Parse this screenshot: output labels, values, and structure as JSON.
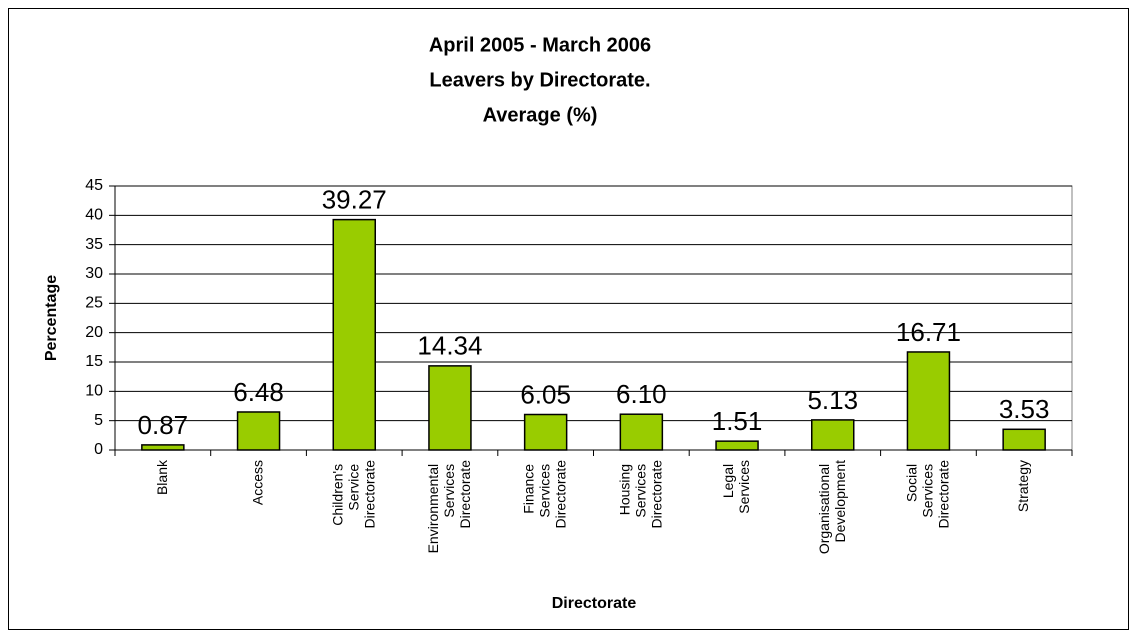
{
  "chart_data": {
    "type": "bar",
    "title": [
      "April 2005 - March 2006",
      "Leavers by Directorate.",
      "Average (%)"
    ],
    "x_label": "Directorate",
    "y_label": "Percentage",
    "categories": [
      "Blank",
      "Access",
      "Children's Service Directorate",
      "Environmental Services Directorate",
      "Finance Services Directorate",
      "Housing Services Directorate",
      "Legal Services",
      "Organisational Development",
      "Social Services Directorate",
      "Strategy"
    ],
    "values": [
      0.87,
      6.48,
      39.27,
      14.34,
      6.05,
      6.1,
      1.51,
      5.13,
      16.71,
      3.53
    ],
    "value_labels": [
      "0.87",
      "6.48",
      "39.27",
      "14.34",
      "6.05",
      "6.10",
      "1.51",
      "5.13",
      "16.71",
      "3.53"
    ],
    "color": "#99cc00",
    "ylim": [
      0,
      45
    ],
    "yticks": [
      0,
      5,
      10,
      15,
      20,
      25,
      30,
      35,
      40,
      45
    ],
    "grid": true
  }
}
